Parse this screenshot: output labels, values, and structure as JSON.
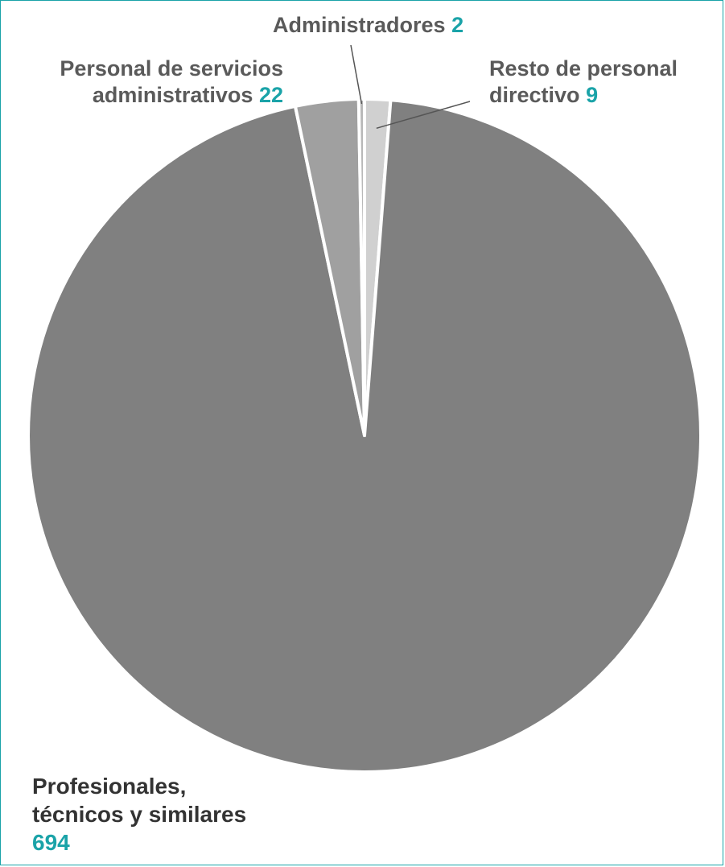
{
  "chart_data": {
    "type": "pie",
    "slices": [
      {
        "label_lines": [
          "Resto de personal",
          "directivo"
        ],
        "value": 9,
        "color": "#d0d0d0"
      },
      {
        "label_lines": [
          "Profesionales,",
          "técnicos y similares"
        ],
        "value": 694,
        "color": "#808080"
      },
      {
        "label_lines": [
          "Personal de servicios",
          "administrativos"
        ],
        "value": 22,
        "color": "#a0a0a0"
      },
      {
        "label_lines": [
          "Administradores"
        ],
        "value": 2,
        "color": "#b8b8b8"
      }
    ],
    "start_angle": "12 o'clock",
    "direction": "clockwise",
    "value_color": "#1aa3a8",
    "label_color": "#5a5a5a"
  }
}
